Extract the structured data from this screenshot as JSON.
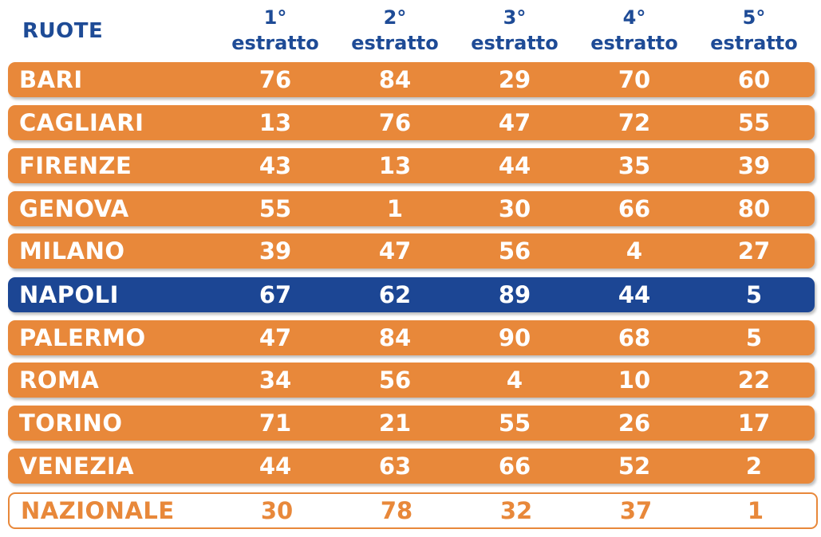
{
  "header": {
    "ruote_label": "RUOTE",
    "columns": [
      {
        "num": "1°",
        "word": "estratto"
      },
      {
        "num": "2°",
        "word": "estratto"
      },
      {
        "num": "3°",
        "word": "estratto"
      },
      {
        "num": "4°",
        "word": "estratto"
      },
      {
        "num": "5°",
        "word": "estratto"
      }
    ]
  },
  "rows": [
    {
      "name": "BARI",
      "values": [
        "76",
        "84",
        "29",
        "70",
        "60"
      ]
    },
    {
      "name": "CAGLIARI",
      "values": [
        "13",
        "76",
        "47",
        "72",
        "55"
      ]
    },
    {
      "name": "FIRENZE",
      "values": [
        "43",
        "13",
        "44",
        "35",
        "39"
      ]
    },
    {
      "name": "GENOVA",
      "values": [
        "55",
        "1",
        "30",
        "66",
        "80"
      ]
    },
    {
      "name": "MILANO",
      "values": [
        "39",
        "47",
        "56",
        "4",
        "27"
      ]
    },
    {
      "name": "NAPOLI",
      "values": [
        "67",
        "62",
        "89",
        "44",
        "5"
      ]
    },
    {
      "name": "PALERMO",
      "values": [
        "47",
        "84",
        "90",
        "68",
        "5"
      ]
    },
    {
      "name": "ROMA",
      "values": [
        "34",
        "56",
        "4",
        "10",
        "22"
      ]
    },
    {
      "name": "TORINO",
      "values": [
        "71",
        "21",
        "55",
        "26",
        "17"
      ]
    },
    {
      "name": "VENEZIA",
      "values": [
        "44",
        "63",
        "66",
        "52",
        "2"
      ]
    },
    {
      "name": "NAZIONALE",
      "values": [
        "30",
        "78",
        "32",
        "37",
        "1"
      ]
    }
  ],
  "colors": {
    "orange": "#e8883a",
    "blue": "#1c4694",
    "header_blue": "#1e4b96"
  }
}
